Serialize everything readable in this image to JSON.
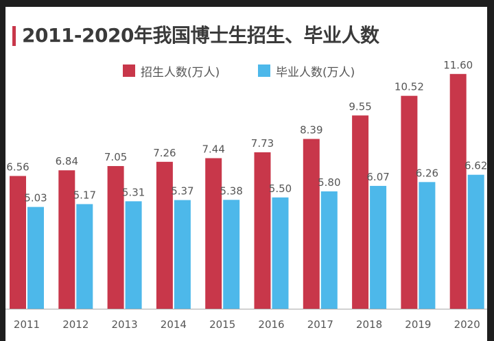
{
  "chart_data": {
    "type": "bar",
    "title": "2011-2020年我国博士生招生、毕业人数",
    "categories": [
      "2011",
      "2012",
      "2013",
      "2014",
      "2015",
      "2016",
      "2017",
      "2018",
      "2019",
      "2020"
    ],
    "series": [
      {
        "name": "招生人数(万人)",
        "color": "#c8374a",
        "values": [
          6.56,
          6.84,
          7.05,
          7.26,
          7.44,
          7.73,
          8.39,
          9.55,
          10.52,
          11.6
        ],
        "labels": [
          "6.56",
          "6.84",
          "7.05",
          "7.26",
          "7.44",
          "7.73",
          "8.39",
          "9.55",
          "10.52",
          "11.60"
        ]
      },
      {
        "name": "毕业人数(万人)",
        "color": "#4db8ea",
        "values": [
          5.03,
          5.17,
          5.31,
          5.37,
          5.38,
          5.5,
          5.8,
          6.07,
          6.26,
          6.62
        ],
        "labels": [
          "5.03",
          "5.17",
          "5.31",
          "5.37",
          "5.38",
          "5.50",
          "5.80",
          "6.07",
          "6.26",
          "6.62"
        ]
      }
    ],
    "legend_position": "top-center",
    "grid": false
  }
}
